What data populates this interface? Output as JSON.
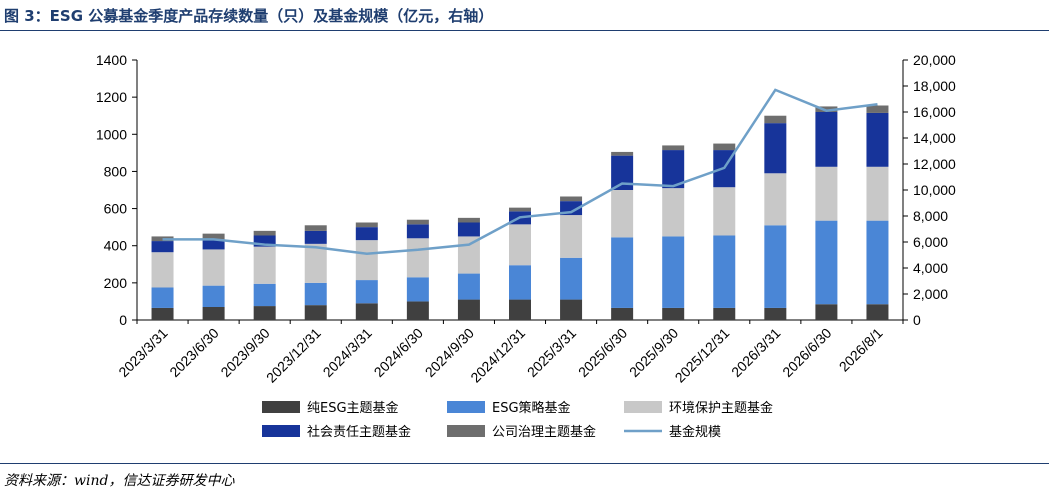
{
  "title": "图 3：ESG 公募基金季度产品存续数量（只）及基金规模（亿元，右轴）",
  "source": "资料来源：wind，信达证券研发中心",
  "chart_data": {
    "type": "bar",
    "stacked": true,
    "categories": [
      "2023/3/31",
      "2023/6/30",
      "2023/9/30",
      "2023/12/31",
      "2024/3/31",
      "2024/6/30",
      "2024/9/30",
      "2024/12/31",
      "2025/3/31",
      "2025/6/30",
      "2025/9/30",
      "2025/12/31",
      "2026/3/31",
      "2026/6/30",
      "2026/8/1"
    ],
    "series": [
      {
        "name": "纯ESG主题基金",
        "color": "#404040",
        "values": [
          65,
          70,
          75,
          80,
          90,
          100,
          110,
          110,
          110,
          65,
          65,
          65,
          65,
          85,
          85
        ]
      },
      {
        "name": "ESG策略基金",
        "color": "#4a86d6",
        "values": [
          110,
          115,
          120,
          120,
          125,
          130,
          140,
          185,
          225,
          380,
          385,
          390,
          445,
          450,
          450
        ]
      },
      {
        "name": "环境保护主题基金",
        "color": "#c8c8c8",
        "values": [
          190,
          195,
          200,
          210,
          215,
          210,
          200,
          220,
          230,
          255,
          260,
          260,
          280,
          290,
          290
        ]
      },
      {
        "name": "社会责任主题基金",
        "color": "#17349a",
        "values": [
          60,
          55,
          60,
          70,
          70,
          75,
          75,
          70,
          75,
          185,
          205,
          200,
          270,
          295,
          290
        ]
      },
      {
        "name": "公司治理主题基金",
        "color": "#6e6e6e",
        "values": [
          25,
          30,
          25,
          30,
          25,
          25,
          25,
          20,
          25,
          20,
          25,
          35,
          40,
          30,
          40
        ]
      }
    ],
    "line": {
      "name": "基金规模",
      "color": "#6fa0c8",
      "axis": "right",
      "values": [
        6200,
        6200,
        5800,
        5600,
        5100,
        5400,
        5800,
        7900,
        8300,
        10500,
        10300,
        11700,
        17700,
        16100,
        16600
      ]
    },
    "y_left": {
      "min": 0,
      "max": 1400,
      "ticks": [
        "0",
        "200",
        "400",
        "600",
        "800",
        "1000",
        "1200",
        "1400"
      ]
    },
    "y_right": {
      "min": 0,
      "max": 20000,
      "ticks": [
        "0",
        "2,000",
        "4,000",
        "6,000",
        "8,000",
        "10,000",
        "12,000",
        "14,000",
        "16,000",
        "18,000",
        "20,000"
      ]
    }
  }
}
